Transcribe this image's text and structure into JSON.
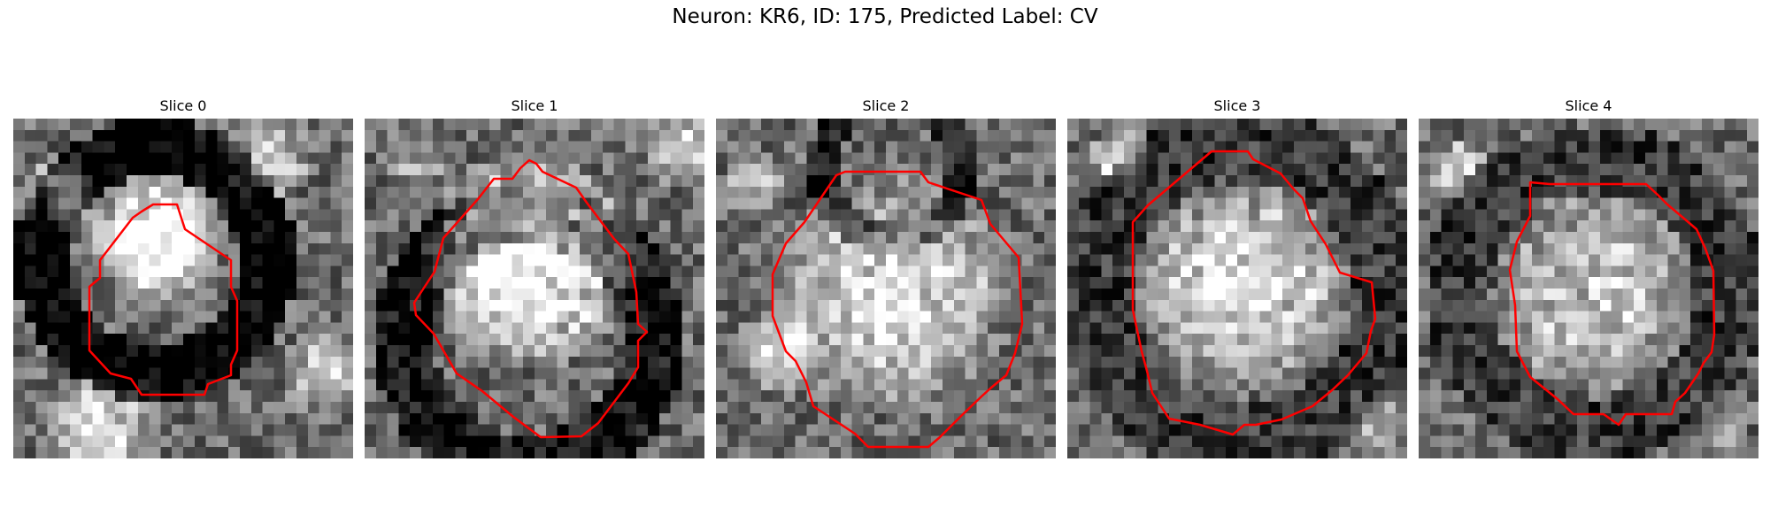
{
  "figure": {
    "title": "Neuron: KR6, ID: 175, Predicted Label: CV",
    "contour_color": "#ff0000"
  },
  "panels": [
    {
      "title": "Slice 0"
    },
    {
      "title": "Slice 1"
    },
    {
      "title": "Slice 2"
    },
    {
      "title": "Slice 3"
    },
    {
      "title": "Slice 4"
    }
  ]
}
